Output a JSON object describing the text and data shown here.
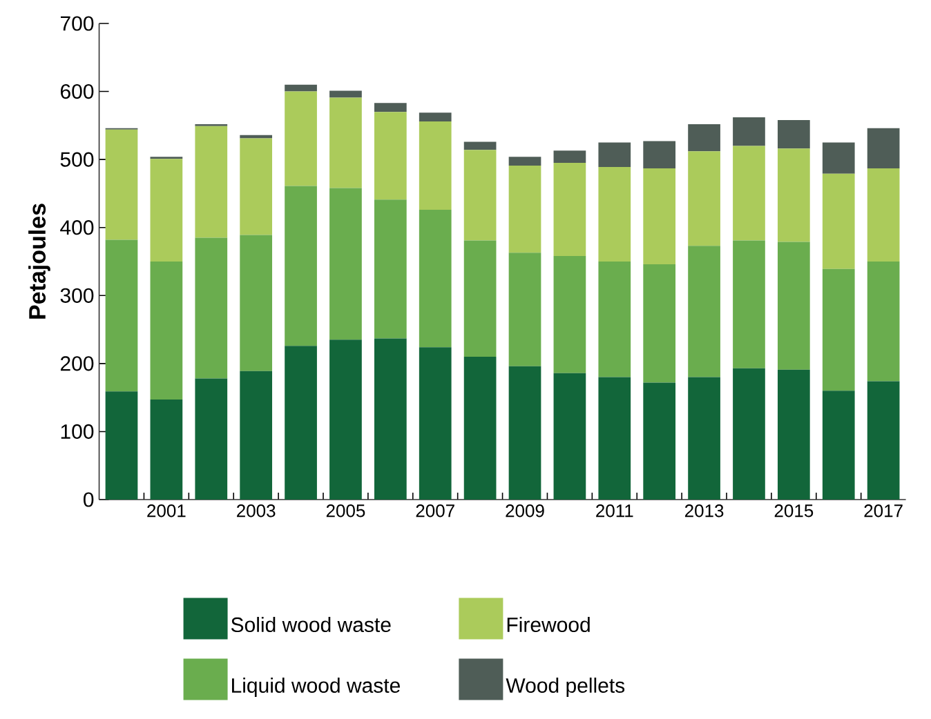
{
  "chart_data": {
    "type": "bar",
    "stacked": true,
    "ylabel": "Petajoules",
    "categories": [
      null,
      "2001",
      null,
      "2003",
      null,
      "2005",
      null,
      "2007",
      null,
      "2009",
      null,
      "2011",
      null,
      "2013",
      null,
      "2015",
      null,
      "2017"
    ],
    "series": [
      {
        "name": "Solid wood waste",
        "color": "#12663a",
        "values": [
          159,
          147,
          178,
          189,
          226,
          235,
          237,
          224,
          210,
          196,
          186,
          180,
          172,
          180,
          193,
          191,
          160,
          174
        ]
      },
      {
        "name": "Liquid wood waste",
        "color": "#6aad4e",
        "values": [
          223,
          203,
          207,
          200,
          235,
          223,
          204,
          202,
          171,
          167,
          172,
          170,
          174,
          193,
          188,
          188,
          179,
          176
        ]
      },
      {
        "name": "Firewood",
        "color": "#abcb5b",
        "values": [
          162,
          151,
          164,
          142,
          139,
          133,
          129,
          130,
          133,
          128,
          137,
          139,
          141,
          139,
          139,
          137,
          140,
          137
        ]
      },
      {
        "name": "Wood pellets",
        "color": "#4f5d57",
        "values": [
          2,
          3,
          3,
          5,
          10,
          10,
          13,
          13,
          12,
          13,
          18,
          36,
          40,
          40,
          42,
          42,
          46,
          59
        ]
      }
    ],
    "ylim": [
      0,
      700
    ],
    "yticks": [
      0,
      100,
      200,
      300,
      400,
      500,
      600,
      700
    ],
    "grid": false,
    "legend": "bottom"
  }
}
